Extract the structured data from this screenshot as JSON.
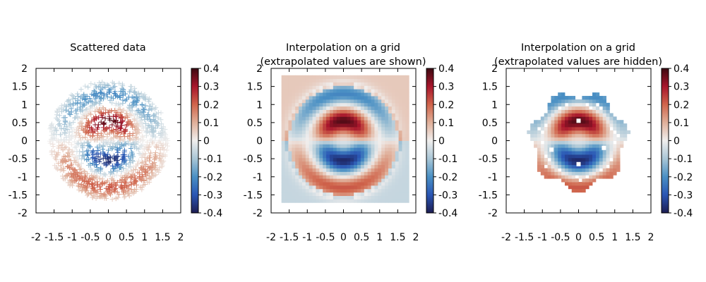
{
  "colormap": {
    "name": "balance",
    "stops": [
      "#1d1d52",
      "#2a56b4",
      "#4a90c4",
      "#a9c6d6",
      "#f0eeed",
      "#e0b09a",
      "#d0654c",
      "#a8162c",
      "#3c0911"
    ],
    "range": [
      -0.4,
      0.4
    ]
  },
  "chart_data": [
    {
      "type": "scatter",
      "title": "Scattered data",
      "xlim": [
        -2,
        2
      ],
      "ylim": [
        -2,
        2
      ],
      "xticks": [
        "-2",
        "-1.5",
        "-1",
        "-0.5",
        "0",
        "0.5",
        "1",
        "1.5",
        "2"
      ],
      "yticks": [
        "2",
        "1.5",
        "1",
        "0.5",
        "0",
        "-0.5",
        "-1",
        "-1.5",
        "-2"
      ],
      "marker": "plus",
      "function": "z = x*y-like dipole field; peak ~0.38 at (0,0.5), trough ~-0.38 at (0,-0.5), lobes of opposite sign ~±0.2 at r≈1.2",
      "colorbar": {
        "ticks": [
          "0.4",
          "0.3",
          "0.2",
          "0.1",
          "0",
          "-0.1",
          "-0.2",
          "-0.3",
          "-0.4"
        ],
        "range": [
          -0.4,
          0.4
        ]
      }
    },
    {
      "type": "heatmap",
      "title": "Interpolation on a grid",
      "subtitle": "(extrapolated values are shown)",
      "xlim": [
        -2,
        2
      ],
      "ylim": [
        -2,
        2
      ],
      "grid_extent": [
        -1.7,
        1.8,
        -1.7,
        1.8
      ],
      "xticks": [
        "-2",
        "-1.5",
        "-1",
        "-0.5",
        "0",
        "0.5",
        "1",
        "1.5",
        "2"
      ],
      "yticks": [
        "2",
        "1.5",
        "1",
        "0.5",
        "0",
        "-0.5",
        "-1",
        "-1.5",
        "-2"
      ],
      "colorbar": {
        "ticks": [
          "0.4",
          "0.3",
          "0.2",
          "0.1",
          "0",
          "-0.1",
          "-0.2",
          "-0.3",
          "-0.4"
        ],
        "range": [
          -0.4,
          0.4
        ]
      }
    },
    {
      "type": "heatmap",
      "title": "Interpolation on a grid",
      "subtitle": "(extrapolated values are hidden)",
      "xlim": [
        -2,
        2
      ],
      "ylim": [
        -2,
        2
      ],
      "visible_radius": 1.3,
      "xticks": [
        "-2",
        "-1.5",
        "-1",
        "-0.5",
        "0",
        "0.5",
        "1",
        "1.5",
        "2"
      ],
      "yticks": [
        "2",
        "1.5",
        "1",
        "0.5",
        "0",
        "-0.5",
        "-1",
        "-1.5",
        "-2"
      ],
      "colorbar": {
        "ticks": [
          "0.4",
          "0.3",
          "0.2",
          "0.1",
          "0",
          "-0.1",
          "-0.2",
          "-0.3",
          "-0.4"
        ],
        "range": [
          -0.4,
          0.4
        ]
      }
    }
  ]
}
